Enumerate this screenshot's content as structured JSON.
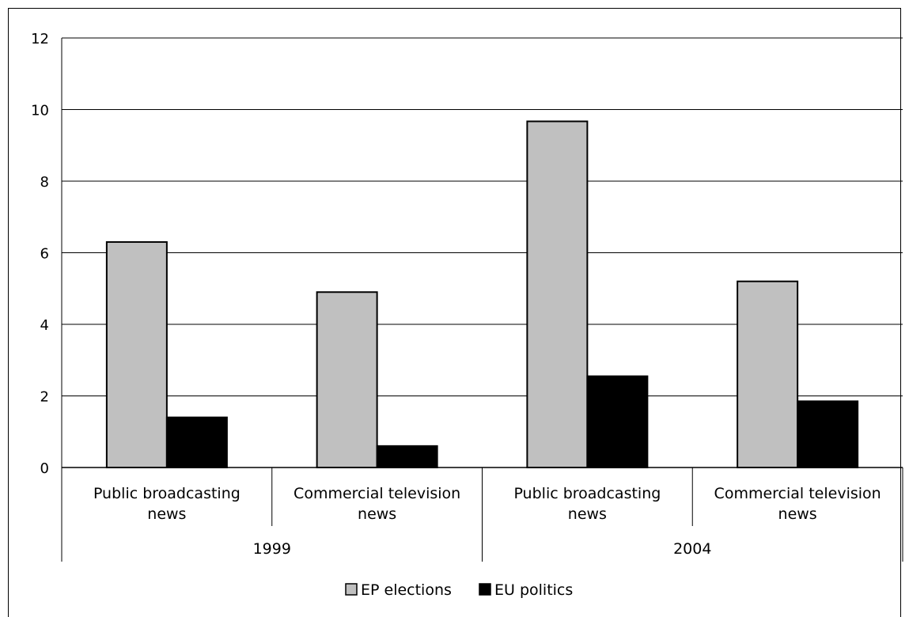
{
  "chart_data": {
    "type": "bar",
    "title": "",
    "xlabel": "",
    "ylabel": "",
    "ylim": [
      0,
      12
    ],
    "yticks": [
      0,
      2,
      4,
      6,
      8,
      10,
      12
    ],
    "grid": true,
    "legend_position": "bottom",
    "groups": [
      {
        "label": "1999",
        "categories": [
          "Public broadcasting news",
          "Commercial television news"
        ]
      },
      {
        "label": "2004",
        "categories": [
          "Public broadcasting news",
          "Commercial television news"
        ]
      }
    ],
    "categories": [
      [
        "Public broadcasting",
        "news"
      ],
      [
        "Commercial television",
        "news"
      ],
      [
        "Public broadcasting",
        "news"
      ],
      [
        "Commercial television",
        "news"
      ]
    ],
    "series": [
      {
        "name": "EP elections",
        "color": "#c0c0c0",
        "values": [
          6.3,
          4.9,
          9.67,
          5.2
        ]
      },
      {
        "name": "EU politics",
        "color": "#000000",
        "values": [
          1.4,
          0.6,
          2.55,
          1.85
        ]
      }
    ]
  }
}
